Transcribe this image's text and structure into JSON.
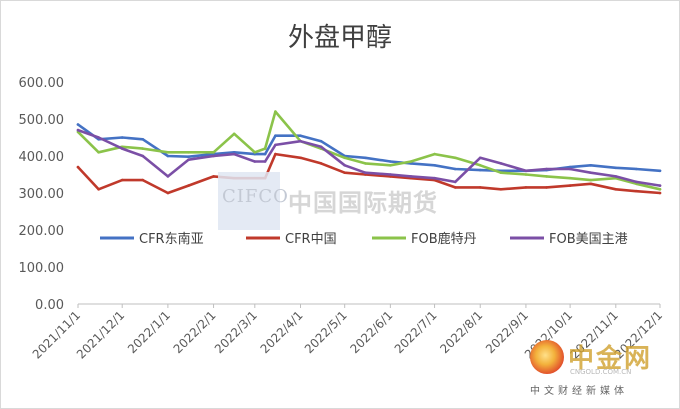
{
  "chart_data": {
    "type": "line",
    "title": "外盘甲醇",
    "xlabel": "",
    "ylabel": "",
    "ylim": [
      0,
      600
    ],
    "yticks": [
      "0.00",
      "100.00",
      "200.00",
      "300.00",
      "400.00",
      "500.00",
      "600.00"
    ],
    "x_dates": [
      "2021/11/1",
      "2021/11/15",
      "2021/12/1",
      "2021/12/15",
      "2022/1/1",
      "2022/1/15",
      "2022/2/1",
      "2022/2/15",
      "2022/3/1",
      "2022/3/8",
      "2022/3/15",
      "2022/4/1",
      "2022/4/15",
      "2022/5/1",
      "2022/5/15",
      "2022/6/1",
      "2022/6/15",
      "2022/7/1",
      "2022/7/15",
      "2022/8/1",
      "2022/8/15",
      "2022/9/1",
      "2022/9/15",
      "2022/10/1",
      "2022/10/15",
      "2022/11/1",
      "2022/11/15",
      "2022/12/1"
    ],
    "x_tick_labels": [
      "2021/11/1",
      "2021/12/1",
      "2022/1/1",
      "2022/2/1",
      "2022/3/1",
      "2022/4/1",
      "2022/5/1",
      "2022/6/1",
      "2022/7/1",
      "2022/8/1",
      "2022/9/1",
      "2022/10/1",
      "2022/11/1",
      "2022/12/1"
    ],
    "legend_position": "inside-middle",
    "grid": false,
    "series": [
      {
        "name": "CFR东南亚",
        "color": "#4472c4",
        "values": [
          485,
          445,
          450,
          445,
          400,
          398,
          405,
          410,
          405,
          405,
          455,
          455,
          440,
          400,
          395,
          385,
          380,
          375,
          365,
          362,
          360,
          360,
          362,
          370,
          375,
          368,
          365,
          360
        ]
      },
      {
        "name": "CFR中国",
        "color": "#c0392b",
        "values": [
          370,
          310,
          335,
          335,
          300,
          320,
          345,
          340,
          340,
          340,
          405,
          395,
          380,
          355,
          350,
          345,
          340,
          335,
          315,
          315,
          310,
          315,
          315,
          320,
          325,
          310,
          305,
          300
        ]
      },
      {
        "name": "FOB鹿特丹",
        "color": "#8bc34a",
        "values": [
          465,
          410,
          425,
          420,
          410,
          410,
          410,
          460,
          410,
          420,
          520,
          440,
          420,
          395,
          380,
          375,
          385,
          405,
          395,
          375,
          355,
          350,
          345,
          340,
          335,
          340,
          325,
          310
        ]
      },
      {
        "name": "FOB美国主港",
        "color": "#7b4fa6",
        "values": [
          470,
          450,
          420,
          400,
          345,
          390,
          400,
          405,
          385,
          385,
          430,
          440,
          425,
          375,
          355,
          350,
          345,
          340,
          330,
          395,
          380,
          360,
          365,
          365,
          355,
          345,
          330,
          320
        ]
      }
    ]
  },
  "watermark": {
    "cifco": "CIFCO",
    "cn": "中国国际期货"
  },
  "brand": {
    "name": "中金网",
    "domain": "CNGOLD.COM.CN",
    "tagline": "中文财经新媒体"
  }
}
